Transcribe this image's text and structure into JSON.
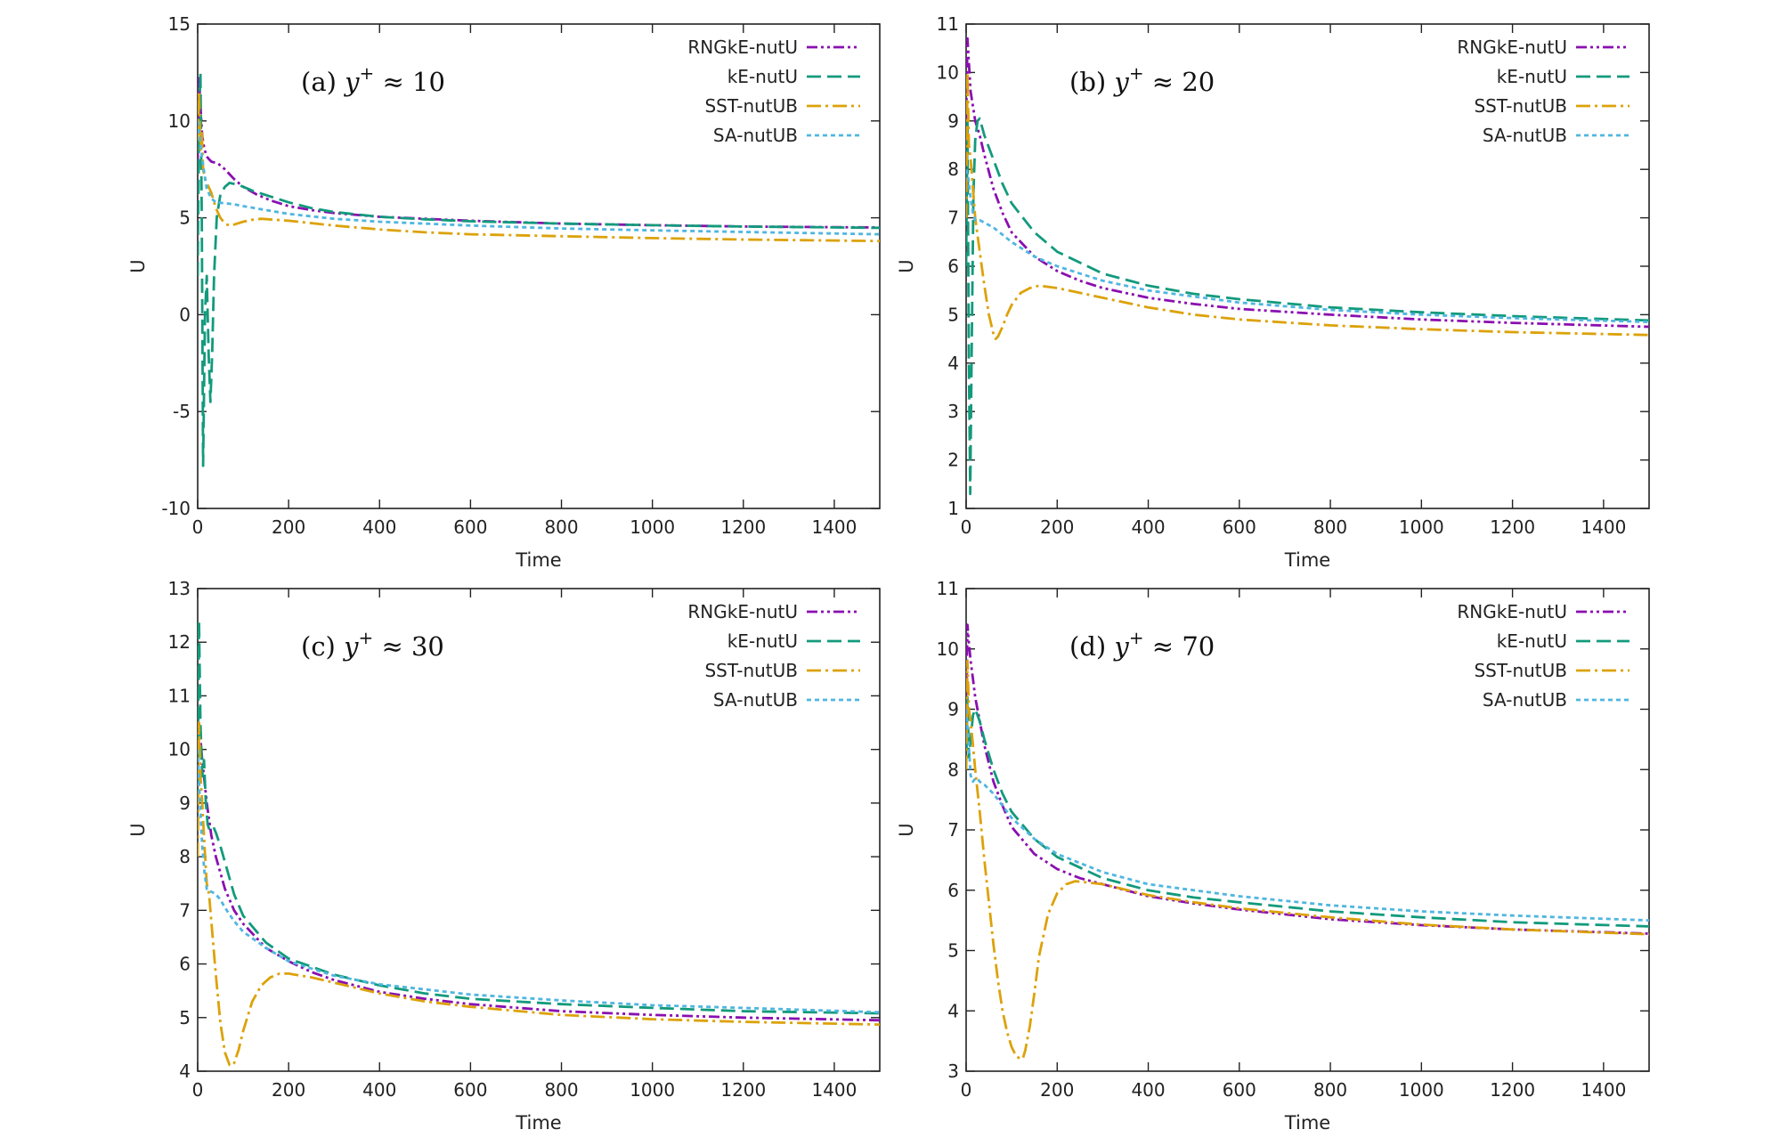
{
  "series_styles": [
    {
      "name": "RNGkE-nutU",
      "color": "#8a0fb0",
      "dash": "12,4,3,4,3,4"
    },
    {
      "name": "kE-nutU",
      "color": "#129a7c",
      "dash": "16,7"
    },
    {
      "name": "SST-nutUB",
      "color": "#dca20a",
      "dash": "16,5,3,5"
    },
    {
      "name": "SA-nutUB",
      "color": "#4fb6e0",
      "dash": "5,4"
    }
  ],
  "chart_data": [
    {
      "type": "line",
      "annotation": {
        "prefix": "(a) ",
        "var": "y",
        "sup": "+",
        "rest": " ≈ 10"
      },
      "xlabel": "Time",
      "ylabel": "U",
      "xlim": [
        0,
        1500
      ],
      "ylim": [
        -10,
        15
      ],
      "xticks": [
        0,
        200,
        400,
        600,
        800,
        1000,
        1200,
        1400
      ],
      "yticks": [
        -10,
        -5,
        0,
        5,
        10,
        15
      ],
      "legend_position": "top-right",
      "series": [
        {
          "name": "RNGkE-nutU",
          "x": [
            0,
            3,
            6,
            10,
            15,
            22,
            30,
            45,
            60,
            80,
            100,
            130,
            160,
            200,
            250,
            300,
            400,
            500,
            600,
            800,
            1000,
            1200,
            1500
          ],
          "y": [
            8,
            12.2,
            10.8,
            9.2,
            8.5,
            8.1,
            7.9,
            7.8,
            7.5,
            7.0,
            6.6,
            6.2,
            5.9,
            5.6,
            5.4,
            5.25,
            5.05,
            4.95,
            4.85,
            4.7,
            4.62,
            4.55,
            4.5
          ]
        },
        {
          "name": "kE-nutU",
          "x": [
            0,
            3,
            6,
            9,
            12,
            16,
            20,
            24,
            28,
            32,
            36,
            42,
            50,
            60,
            70,
            90,
            120,
            160,
            200,
            250,
            300,
            400,
            500,
            600,
            800,
            1000,
            1200,
            1500
          ],
          "y": [
            2,
            10,
            12.5,
            5,
            -7.8,
            0,
            2,
            -2,
            -4.5,
            -2,
            2,
            5,
            6.2,
            6.6,
            6.8,
            6.7,
            6.4,
            6.1,
            5.8,
            5.5,
            5.3,
            5.05,
            4.92,
            4.82,
            4.7,
            4.62,
            4.55,
            4.48
          ]
        },
        {
          "name": "SST-nutUB",
          "x": [
            0,
            3,
            6,
            9,
            12,
            16,
            20,
            30,
            40,
            50,
            60,
            70,
            80,
            100,
            120,
            140,
            200,
            300,
            400,
            500,
            600,
            800,
            1000,
            1200,
            1500
          ],
          "y": [
            9,
            11.5,
            8.5,
            9.5,
            7.5,
            7,
            6.8,
            6.3,
            5.5,
            5.0,
            4.7,
            4.6,
            4.65,
            4.8,
            4.9,
            4.95,
            4.85,
            4.6,
            4.4,
            4.25,
            4.15,
            4.05,
            3.95,
            3.88,
            3.8
          ]
        },
        {
          "name": "SA-nutUB",
          "x": [
            0,
            5,
            10,
            20,
            30,
            40,
            60,
            80,
            100,
            150,
            200,
            300,
            400,
            600,
            800,
            1000,
            1200,
            1500
          ],
          "y": [
            10,
            9,
            8,
            6.5,
            6,
            5.8,
            5.75,
            5.7,
            5.6,
            5.4,
            5.2,
            4.95,
            4.8,
            4.6,
            4.45,
            4.35,
            4.27,
            4.15
          ]
        }
      ]
    },
    {
      "type": "line",
      "annotation": {
        "prefix": "(b) ",
        "var": "y",
        "sup": "+",
        "rest": " ≈ 20"
      },
      "xlabel": "Time",
      "ylabel": "U",
      "xlim": [
        0,
        1500
      ],
      "ylim": [
        1,
        11
      ],
      "xticks": [
        0,
        200,
        400,
        600,
        800,
        1000,
        1200,
        1400
      ],
      "yticks": [
        1,
        2,
        3,
        4,
        5,
        6,
        7,
        8,
        9,
        10,
        11
      ],
      "legend_position": "top-right",
      "series": [
        {
          "name": "RNGkE-nutU",
          "x": [
            0,
            3,
            6,
            10,
            15,
            20,
            30,
            40,
            60,
            80,
            100,
            150,
            200,
            250,
            300,
            400,
            500,
            600,
            800,
            1000,
            1200,
            1500
          ],
          "y": [
            9,
            10.7,
            10.2,
            9.6,
            9.3,
            9.0,
            8.7,
            8.3,
            7.6,
            7.1,
            6.7,
            6.2,
            5.9,
            5.7,
            5.55,
            5.35,
            5.22,
            5.12,
            5.0,
            4.9,
            4.83,
            4.75
          ]
        },
        {
          "name": "kE-nutU",
          "x": [
            0,
            3,
            6,
            9,
            12,
            16,
            20,
            25,
            30,
            40,
            60,
            80,
            100,
            150,
            200,
            300,
            400,
            500,
            600,
            800,
            1000,
            1200,
            1500
          ],
          "y": [
            6,
            9,
            4,
            1.3,
            4,
            7.5,
            8.6,
            9.0,
            9.05,
            8.7,
            8.2,
            7.7,
            7.3,
            6.7,
            6.3,
            5.85,
            5.6,
            5.43,
            5.32,
            5.15,
            5.05,
            4.97,
            4.88
          ]
        },
        {
          "name": "SST-nutUB",
          "x": [
            0,
            3,
            6,
            10,
            15,
            20,
            30,
            40,
            50,
            60,
            65,
            70,
            80,
            90,
            100,
            120,
            140,
            160,
            200,
            250,
            300,
            400,
            500,
            600,
            800,
            1000,
            1200,
            1500
          ],
          "y": [
            7,
            10,
            8.5,
            8.2,
            7.6,
            7.0,
            6.3,
            5.6,
            5.0,
            4.6,
            4.5,
            4.55,
            4.75,
            5.0,
            5.2,
            5.45,
            5.55,
            5.6,
            5.55,
            5.45,
            5.35,
            5.15,
            5.0,
            4.9,
            4.78,
            4.7,
            4.64,
            4.58
          ]
        },
        {
          "name": "SA-nutUB",
          "x": [
            0,
            5,
            10,
            15,
            20,
            30,
            40,
            50,
            60,
            80,
            100,
            150,
            200,
            300,
            400,
            600,
            800,
            1000,
            1200,
            1500
          ],
          "y": [
            8,
            7.8,
            7.4,
            7.1,
            6.95,
            6.95,
            6.9,
            6.85,
            6.8,
            6.65,
            6.5,
            6.2,
            6.0,
            5.7,
            5.5,
            5.25,
            5.1,
            5.0,
            4.93,
            4.85
          ]
        }
      ]
    },
    {
      "type": "line",
      "annotation": {
        "prefix": "(c) ",
        "var": "y",
        "sup": "+",
        "rest": " ≈ 30"
      },
      "xlabel": "Time",
      "ylabel": "U",
      "xlim": [
        0,
        1500
      ],
      "ylim": [
        4,
        13
      ],
      "xticks": [
        0,
        200,
        400,
        600,
        800,
        1000,
        1200,
        1400
      ],
      "yticks": [
        4,
        5,
        6,
        7,
        8,
        9,
        10,
        11,
        12,
        13
      ],
      "legend_position": "top-right",
      "series": [
        {
          "name": "RNGkE-nutU",
          "x": [
            0,
            3,
            6,
            10,
            15,
            20,
            30,
            40,
            60,
            80,
            100,
            150,
            200,
            250,
            300,
            400,
            500,
            600,
            800,
            1000,
            1200,
            1500
          ],
          "y": [
            10,
            10.5,
            10.2,
            9.8,
            9.4,
            9.0,
            8.4,
            8.0,
            7.4,
            7.0,
            6.75,
            6.3,
            6.05,
            5.85,
            5.7,
            5.48,
            5.35,
            5.25,
            5.12,
            5.05,
            5.0,
            4.95
          ]
        },
        {
          "name": "kE-nutU",
          "x": [
            0,
            3,
            6,
            10,
            14,
            18,
            22,
            26,
            30,
            35,
            40,
            50,
            60,
            80,
            100,
            150,
            200,
            300,
            400,
            500,
            600,
            800,
            1000,
            1200,
            1500
          ],
          "y": [
            9,
            12.4,
            10.5,
            9.5,
            9.8,
            9.0,
            8.6,
            8.5,
            8.55,
            8.55,
            8.45,
            8.2,
            7.9,
            7.3,
            6.9,
            6.4,
            6.1,
            5.8,
            5.6,
            5.45,
            5.35,
            5.25,
            5.18,
            5.12,
            5.08
          ]
        },
        {
          "name": "SST-nutUB",
          "x": [
            0,
            3,
            6,
            10,
            15,
            20,
            25,
            30,
            40,
            50,
            60,
            70,
            75,
            80,
            90,
            100,
            120,
            140,
            160,
            180,
            200,
            250,
            300,
            400,
            500,
            600,
            800,
            1000,
            1200,
            1500
          ],
          "y": [
            8,
            10.5,
            9.5,
            9.0,
            8.2,
            7.5,
            7.3,
            6.8,
            5.8,
            4.9,
            4.35,
            4.12,
            4.1,
            4.15,
            4.4,
            4.75,
            5.3,
            5.6,
            5.75,
            5.82,
            5.82,
            5.75,
            5.65,
            5.45,
            5.3,
            5.2,
            5.05,
            4.97,
            4.92,
            4.87
          ]
        },
        {
          "name": "SA-nutUB",
          "x": [
            0,
            5,
            10,
            15,
            20,
            25,
            30,
            40,
            50,
            60,
            80,
            100,
            150,
            200,
            300,
            400,
            600,
            800,
            1000,
            1200,
            1500
          ],
          "y": [
            10,
            9.0,
            8.2,
            7.7,
            7.4,
            7.35,
            7.35,
            7.3,
            7.2,
            7.05,
            6.8,
            6.6,
            6.3,
            6.05,
            5.78,
            5.62,
            5.43,
            5.32,
            5.23,
            5.18,
            5.1
          ]
        }
      ]
    },
    {
      "type": "line",
      "annotation": {
        "prefix": "(d) ",
        "var": "y",
        "sup": "+",
        "rest": " ≈ 70"
      },
      "xlabel": "Time",
      "ylabel": "U",
      "xlim": [
        0,
        1500
      ],
      "ylim": [
        3,
        11
      ],
      "xticks": [
        0,
        200,
        400,
        600,
        800,
        1000,
        1200,
        1400
      ],
      "yticks": [
        3,
        4,
        5,
        6,
        7,
        8,
        9,
        10,
        11
      ],
      "legend_position": "top-right",
      "series": [
        {
          "name": "RNGkE-nutU",
          "x": [
            0,
            3,
            6,
            10,
            15,
            20,
            30,
            40,
            60,
            80,
            100,
            150,
            200,
            250,
            300,
            400,
            500,
            600,
            800,
            1000,
            1200,
            1500
          ],
          "y": [
            9,
            10.4,
            10.1,
            9.8,
            9.5,
            9.2,
            8.8,
            8.4,
            7.8,
            7.4,
            7.05,
            6.6,
            6.35,
            6.2,
            6.1,
            5.9,
            5.78,
            5.68,
            5.52,
            5.42,
            5.35,
            5.28
          ]
        },
        {
          "name": "kE-nutU",
          "x": [
            0,
            3,
            6,
            10,
            15,
            20,
            25,
            30,
            40,
            60,
            80,
            100,
            150,
            200,
            300,
            400,
            500,
            600,
            800,
            1000,
            1200,
            1500
          ],
          "y": [
            8,
            9.2,
            8.2,
            8.5,
            8.9,
            9.0,
            8.9,
            8.8,
            8.5,
            8.0,
            7.6,
            7.3,
            6.85,
            6.55,
            6.2,
            6.0,
            5.88,
            5.8,
            5.65,
            5.55,
            5.47,
            5.4
          ]
        },
        {
          "name": "SST-nutUB",
          "x": [
            0,
            3,
            6,
            10,
            15,
            20,
            30,
            40,
            50,
            60,
            70,
            80,
            90,
            100,
            110,
            120,
            125,
            130,
            140,
            150,
            160,
            180,
            200,
            220,
            240,
            300,
            400,
            500,
            600,
            800,
            1000,
            1200,
            1500
          ],
          "y": [
            8,
            9.8,
            9.0,
            8.8,
            8.4,
            8.0,
            7.3,
            6.5,
            5.8,
            5.1,
            4.5,
            4.0,
            3.65,
            3.4,
            3.25,
            3.2,
            3.22,
            3.35,
            3.75,
            4.3,
            4.9,
            5.6,
            5.95,
            6.1,
            6.15,
            6.1,
            5.92,
            5.8,
            5.7,
            5.55,
            5.43,
            5.35,
            5.27
          ]
        },
        {
          "name": "SA-nutUB",
          "x": [
            0,
            5,
            10,
            15,
            20,
            25,
            30,
            40,
            60,
            80,
            100,
            150,
            200,
            300,
            400,
            600,
            800,
            1000,
            1200,
            1500
          ],
          "y": [
            9,
            8.5,
            7.9,
            7.8,
            7.85,
            7.85,
            7.8,
            7.75,
            7.6,
            7.4,
            7.2,
            6.85,
            6.6,
            6.3,
            6.1,
            5.9,
            5.75,
            5.65,
            5.58,
            5.5
          ]
        }
      ]
    }
  ]
}
